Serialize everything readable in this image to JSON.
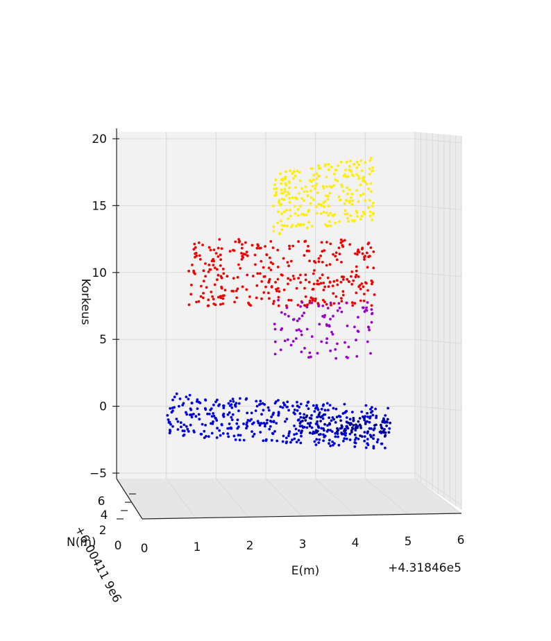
{
  "chart_data": {
    "type": "scatter",
    "projection": "3d",
    "title": "",
    "xlabel": "E(m)",
    "ylabel": "N(m)",
    "zlabel": "Korkeus",
    "x_offset_label": "+4.31846e5",
    "y_offset_label": "+6.00411 9e6",
    "x_ticks": [
      "0",
      "1",
      "2",
      "3",
      "4",
      "5",
      "6"
    ],
    "y_ticks": [
      "0",
      "2",
      "4",
      "6"
    ],
    "z_ticks": [
      "−5",
      "0",
      "5",
      "10",
      "15",
      "20"
    ],
    "xlim": [
      0,
      6
    ],
    "ylim": [
      0,
      6
    ],
    "zlim": [
      -5,
      20
    ],
    "grid": true,
    "legend": "none",
    "series": [
      {
        "color": "#0000dd",
        "z_range": [
          -2.2,
          1.0
        ],
        "x_range": [
          0.7,
          4.9
        ],
        "count": 420
      },
      {
        "color": "#00008b",
        "z_range": [
          -2.0,
          -0.5
        ],
        "x_range": [
          3.2,
          4.9
        ],
        "count": 90
      },
      {
        "color": "#ee0000",
        "z_range": [
          7.5,
          12.5
        ],
        "x_range": [
          1.1,
          4.6
        ],
        "count": 330
      },
      {
        "color": "#9900cc",
        "z_range": [
          3.5,
          8.0
        ],
        "x_range": [
          2.7,
          4.6
        ],
        "count": 95
      },
      {
        "color": "#ffee00",
        "z_range": [
          12.8,
          17.5
        ],
        "x_range": [
          2.7,
          4.6
        ],
        "count": 260
      }
    ]
  }
}
